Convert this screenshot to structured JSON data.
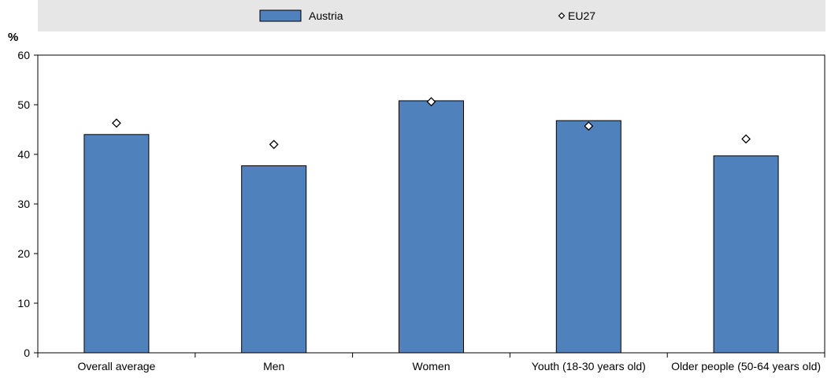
{
  "chart_data": {
    "type": "bar",
    "title": "",
    "xlabel": "",
    "ylabel": "%",
    "ylim": [
      0,
      60
    ],
    "yticks": [
      0,
      10,
      20,
      30,
      40,
      50,
      60
    ],
    "grid": false,
    "legend_position": "top",
    "categories": [
      "Overall average",
      "Men",
      "Women",
      "Youth (18-30 years old)",
      "Older people (50-64 years old)"
    ],
    "series": [
      {
        "name": "Austria",
        "type": "bar",
        "color": "#4f81bd",
        "values": [
          44.0,
          37.7,
          50.8,
          46.8,
          39.7
        ]
      },
      {
        "name": "EU27",
        "type": "marker",
        "marker": "diamond",
        "color": "#ffffff",
        "values": [
          46.3,
          42.0,
          50.6,
          45.7,
          43.1
        ]
      }
    ]
  }
}
